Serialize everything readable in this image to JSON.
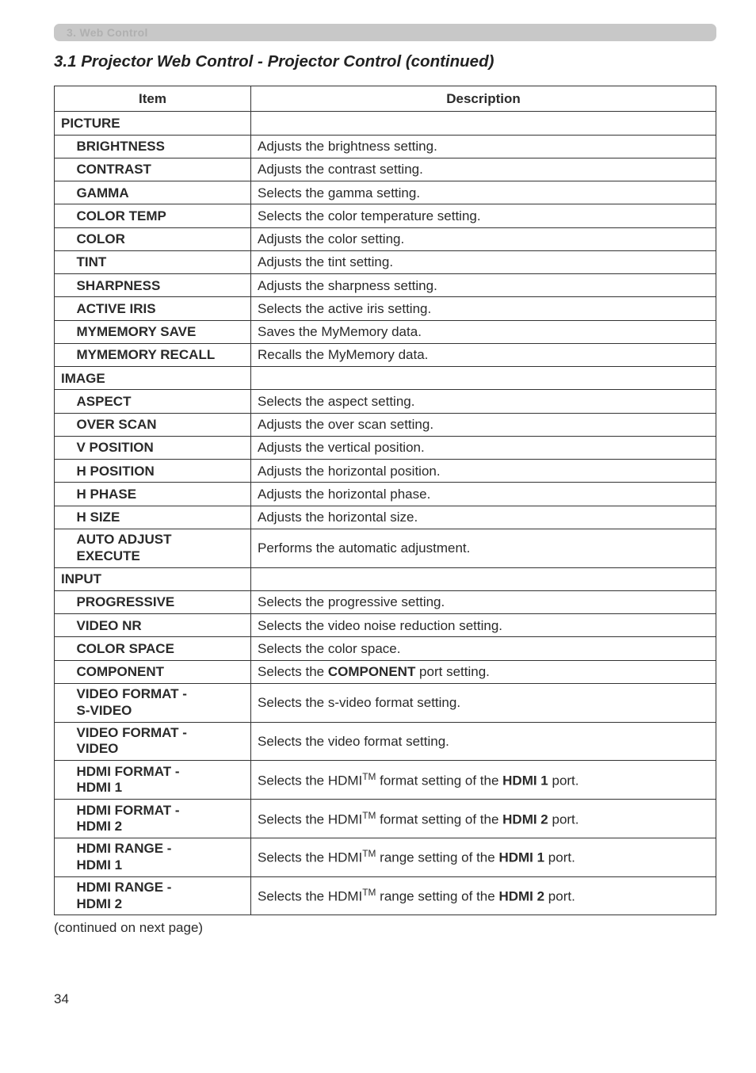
{
  "tag": "3. Web Control",
  "section_heading": "3.1 Projector Web Control - Projector Control (continued)",
  "header": {
    "item": "Item",
    "desc": "Description"
  },
  "groups": [
    {
      "name": "PICTURE",
      "rows": [
        {
          "item": "BRIGHTNESS",
          "desc": "Adjusts the brightness setting."
        },
        {
          "item": "CONTRAST",
          "desc": "Adjusts the contrast setting."
        },
        {
          "item": "GAMMA",
          "desc": "Selects the gamma setting."
        },
        {
          "item": "COLOR TEMP",
          "desc": "Selects the color temperature setting."
        },
        {
          "item": "COLOR",
          "desc": "Adjusts the color setting."
        },
        {
          "item": "TINT",
          "desc": "Adjusts the tint setting."
        },
        {
          "item": "SHARPNESS",
          "desc": "Adjusts the sharpness setting."
        },
        {
          "item": "ACTIVE IRIS",
          "desc": "Selects the active iris setting."
        },
        {
          "item": "MYMEMORY SAVE",
          "desc": "Saves the MyMemory data."
        },
        {
          "item": "MYMEMORY RECALL",
          "desc": "Recalls the MyMemory data."
        }
      ]
    },
    {
      "name": "IMAGE",
      "rows": [
        {
          "item": "ASPECT",
          "desc": "Selects the aspect setting."
        },
        {
          "item": "OVER SCAN",
          "desc": "Adjusts the over scan setting."
        },
        {
          "item": "V POSITION",
          "desc": "Adjusts the vertical position."
        },
        {
          "item": "H POSITION",
          "desc": "Adjusts the horizontal position."
        },
        {
          "item": "H PHASE",
          "desc": "Adjusts the horizontal phase."
        },
        {
          "item": "H SIZE",
          "desc": "Adjusts the horizontal size."
        },
        {
          "item_lines": [
            "AUTO ADJUST",
            "EXECUTE"
          ],
          "desc": "Performs the automatic adjustment."
        }
      ]
    },
    {
      "name": "INPUT",
      "rows": [
        {
          "item": "PROGRESSIVE",
          "desc": "Selects the progressive setting."
        },
        {
          "item": "VIDEO NR",
          "desc": "Selects the video noise reduction setting."
        },
        {
          "item": "COLOR SPACE",
          "desc": "Selects the color space."
        },
        {
          "item": "COMPONENT",
          "desc_html": "Selects the <b>COMPONENT</b> port setting."
        },
        {
          "item_lines": [
            "VIDEO FORMAT -",
            "S-VIDEO"
          ],
          "desc": "Selects the s-video format setting."
        },
        {
          "item_lines": [
            "VIDEO FORMAT -",
            "VIDEO"
          ],
          "desc": "Selects the video format setting."
        },
        {
          "item_lines": [
            "HDMI FORMAT -",
            "HDMI 1"
          ],
          "desc_html": "Selects the HDMI<sup>TM</sup> format setting of the <b>HDMI 1</b> port."
        },
        {
          "item_lines": [
            "HDMI FORMAT -",
            "HDMI 2"
          ],
          "desc_html": "Selects the HDMI<sup>TM</sup> format setting of the <b>HDMI 2</b> port."
        },
        {
          "item_lines": [
            "HDMI RANGE -",
            "HDMI 1"
          ],
          "desc_html": "Selects the HDMI<sup>TM</sup> range setting of the <b>HDMI 1</b> port."
        },
        {
          "item_lines": [
            "HDMI RANGE -",
            "HDMI 2"
          ],
          "desc_html": "Selects the HDMI<sup>TM</sup> range setting of the <b>HDMI 2</b> port."
        }
      ]
    }
  ],
  "continued": "(continued on next page)",
  "page_number": "34"
}
